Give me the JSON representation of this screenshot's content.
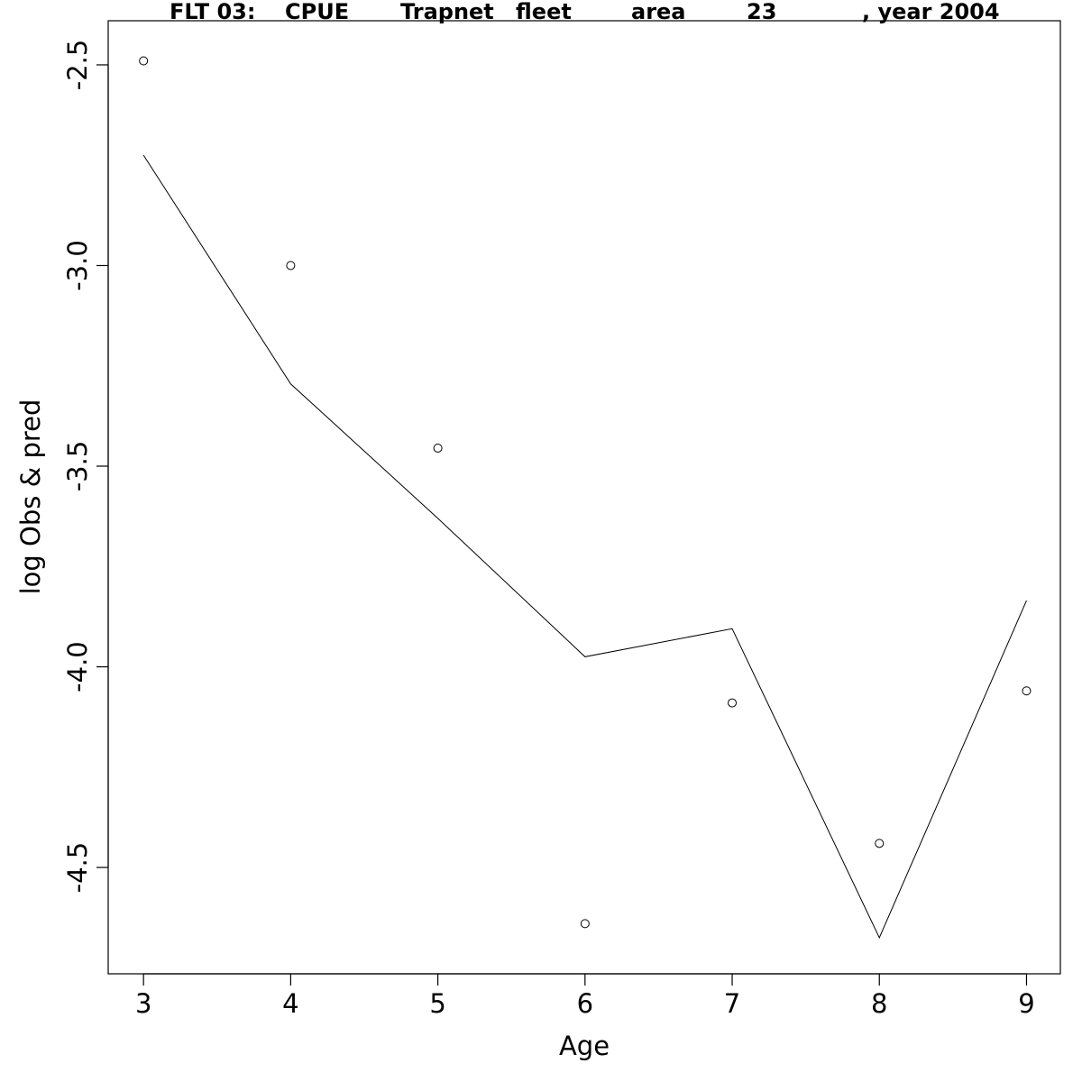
{
  "chart_data": {
    "type": "line",
    "title_parts": [
      "FLT 03:",
      "CPUE",
      "Trapnet",
      "fleet",
      "area",
      "23",
      ", year 2004"
    ],
    "xlabel": "Age",
    "ylabel": "log Obs & pred",
    "x_ticks": [
      "3",
      "4",
      "5",
      "6",
      "7",
      "8",
      "9"
    ],
    "y_ticks": [
      "-2.5",
      "-3.0",
      "-3.5",
      "-4.0",
      "-4.5"
    ],
    "xlim": [
      2.76,
      9.23
    ],
    "ylim": [
      -4.765,
      -2.39
    ],
    "x": [
      3,
      4,
      5,
      6,
      7,
      8,
      9
    ],
    "series": [
      {
        "marker": "open-circle",
        "values": [
          -2.49,
          -3.0,
          -3.455,
          -4.64,
          -4.09,
          -4.44,
          -4.06
        ]
      },
      {
        "marker": "line",
        "values": [
          -2.725,
          -3.295,
          -3.63,
          -3.975,
          -3.905,
          -4.675,
          -3.835
        ]
      }
    ],
    "grid": false,
    "colors": {
      "line": "#000000",
      "points": "#000000",
      "background": "#ffffff"
    }
  }
}
